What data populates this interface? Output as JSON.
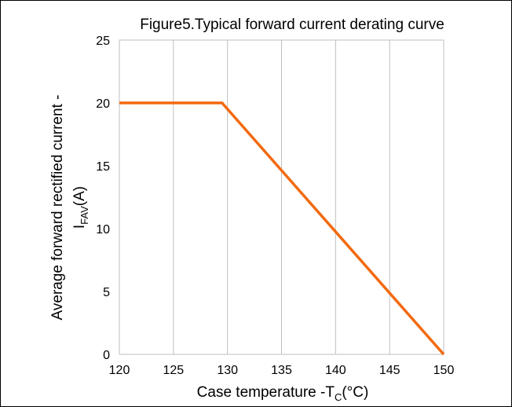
{
  "chart_data": {
    "type": "line",
    "title": "Figure5.Typical forward current derating curve",
    "xlabel": {
      "main": "Case temperature -T",
      "sub": "C",
      "unit": "(°C)"
    },
    "ylabel": {
      "line1": "Average forward rectified current -",
      "main": "I",
      "sub": "FAV",
      "unit": "(A)"
    },
    "xlim": [
      120,
      150
    ],
    "ylim": [
      0,
      25
    ],
    "xticks": [
      120,
      125,
      130,
      135,
      140,
      145,
      150
    ],
    "yticks": [
      0,
      5,
      10,
      15,
      20,
      25
    ],
    "grid": {
      "vertical": true,
      "horizontal": false
    },
    "series": [
      {
        "color": "#F26A0F",
        "x": [
          120,
          129.5,
          150
        ],
        "y": [
          20,
          20,
          0
        ]
      }
    ]
  }
}
